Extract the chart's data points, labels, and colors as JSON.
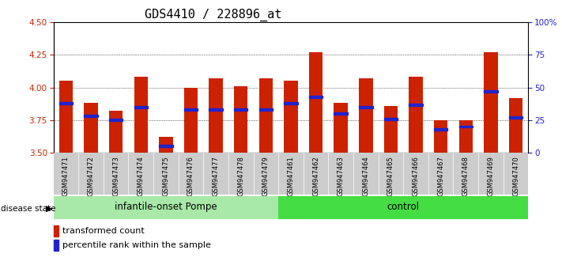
{
  "title": "GDS4410 / 228896_at",
  "samples": [
    "GSM947471",
    "GSM947472",
    "GSM947473",
    "GSM947474",
    "GSM947475",
    "GSM947476",
    "GSM947477",
    "GSM947478",
    "GSM947479",
    "GSM947461",
    "GSM947462",
    "GSM947463",
    "GSM947464",
    "GSM947465",
    "GSM947466",
    "GSM947467",
    "GSM947468",
    "GSM947469",
    "GSM947470"
  ],
  "transformed_count": [
    4.05,
    3.88,
    3.82,
    4.08,
    3.62,
    4.0,
    4.07,
    4.01,
    4.07,
    4.05,
    4.27,
    3.88,
    4.07,
    3.86,
    4.08,
    3.75,
    3.75,
    4.27,
    3.92
  ],
  "percentile_rank": [
    38,
    28,
    25,
    35,
    5,
    33,
    33,
    33,
    33,
    38,
    43,
    30,
    35,
    26,
    37,
    18,
    20,
    47,
    27
  ],
  "groups": [
    {
      "label": "infantile-onset Pompe",
      "start": 0,
      "end": 8,
      "color": "#a8e8a8"
    },
    {
      "label": "control",
      "start": 9,
      "end": 18,
      "color": "#44dd44"
    }
  ],
  "ylim": [
    3.5,
    4.5
  ],
  "yticks": [
    3.5,
    3.75,
    4.0,
    4.25,
    4.5
  ],
  "right_yticks": [
    0,
    25,
    50,
    75,
    100
  ],
  "bar_color": "#cc2200",
  "blue_marker_color": "#2222cc",
  "bar_width": 0.55,
  "title_fontsize": 11,
  "tick_fontsize": 7.5,
  "base_value": 3.5
}
